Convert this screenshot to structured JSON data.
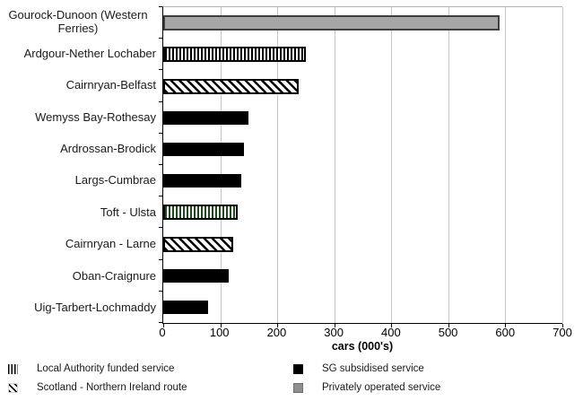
{
  "chart_data": {
    "type": "bar",
    "orientation": "horizontal",
    "title": "",
    "xlabel": "cars (000's)",
    "ylabel": "",
    "xlim": [
      0,
      700
    ],
    "xticks": [
      0,
      100,
      200,
      300,
      400,
      500,
      600,
      700
    ],
    "grid": "vertical",
    "categories": [
      "Gourock-Dunoon (Western Ferries)",
      "Ardgour-Nether Lochaber",
      "Cairnryan-Belfast",
      "Wemyss Bay-Rothesay",
      "Ardrossan-Brodick",
      "Largs-Cumbrae",
      "Toft - Ulsta",
      "Cairnryan - Larne",
      "Oban-Craignure",
      "Uig-Tarbert-Lochmaddy"
    ],
    "values": [
      590,
      250,
      238,
      149,
      141,
      137,
      130,
      123,
      115,
      78
    ],
    "bar_styles": [
      "solid-gray",
      "v-stripes",
      "d-stripes",
      "solid-black",
      "solid-black",
      "solid-black",
      "v-stripes-green",
      "d-stripes",
      "solid-black",
      "solid-black"
    ],
    "legend_position": "bottom"
  },
  "legend": {
    "items": [
      {
        "label": "Local Authority funded service",
        "swatch": "v-stripes"
      },
      {
        "label": "SG subsidised service",
        "swatch": "solid-black"
      },
      {
        "label": "Scotland - Northern Ireland route",
        "swatch": "d-stripes"
      },
      {
        "label": "Privately operated service",
        "swatch": "solid-gray"
      }
    ]
  },
  "colors": {
    "bar_gray": "#a6a6a6",
    "bar_gray_border": "#3f3f3f",
    "bar_black": "#000000",
    "stripe_green": "#1b4a1b",
    "gridline": "#c6c6c6",
    "axis": "#000000"
  }
}
